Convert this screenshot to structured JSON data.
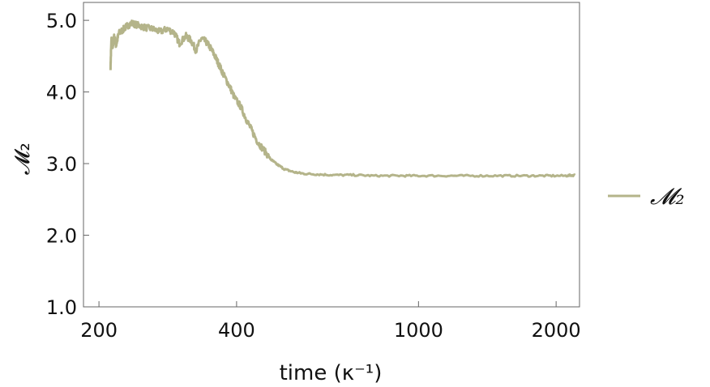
{
  "chart_data": {
    "type": "line",
    "title": "",
    "xlabel": "time (κ⁻¹)",
    "ylabel": "𝓜₂",
    "x_scale": "log",
    "xlim": [
      185,
      2250
    ],
    "ylim": [
      1.0,
      5.25
    ],
    "xticks": [
      {
        "value": 200,
        "label": "200"
      },
      {
        "value": 400,
        "label": "400"
      },
      {
        "value": 1000,
        "label": "1000"
      },
      {
        "value": 2000,
        "label": "2000"
      }
    ],
    "yticks": [
      {
        "value": 1.0,
        "label": "1.0"
      },
      {
        "value": 2.0,
        "label": "2.0"
      },
      {
        "value": 3.0,
        "label": "3.0"
      },
      {
        "value": 4.0,
        "label": "4.0"
      },
      {
        "value": 5.0,
        "label": "5.0"
      }
    ],
    "grid": false,
    "legend_position": "right",
    "series": [
      {
        "name": "𝓜₂",
        "color": "#b4b48a",
        "x": [
          212,
          213,
          214,
          216,
          218,
          221,
          225,
          230,
          236,
          244,
          252,
          262,
          272,
          282,
          292,
          300,
          310,
          318,
          326,
          335,
          343,
          352,
          360,
          368,
          376,
          386,
          396,
          408,
          420,
          432,
          445,
          460,
          475,
          490,
          510,
          535,
          560,
          600,
          650,
          720,
          800,
          900,
          1000,
          1150,
          1300,
          1500,
          1700,
          1900,
          2100,
          2200
        ],
        "y": [
          4.35,
          4.75,
          4.6,
          4.78,
          4.65,
          4.82,
          4.86,
          4.92,
          4.96,
          4.93,
          4.9,
          4.88,
          4.84,
          4.88,
          4.83,
          4.68,
          4.78,
          4.72,
          4.58,
          4.75,
          4.7,
          4.6,
          4.48,
          4.35,
          4.22,
          4.08,
          3.92,
          3.8,
          3.62,
          3.46,
          3.3,
          3.18,
          3.06,
          2.99,
          2.92,
          2.88,
          2.86,
          2.85,
          2.84,
          2.84,
          2.83,
          2.83,
          2.83,
          2.83,
          2.83,
          2.83,
          2.83,
          2.83,
          2.83,
          2.84
        ]
      }
    ]
  }
}
